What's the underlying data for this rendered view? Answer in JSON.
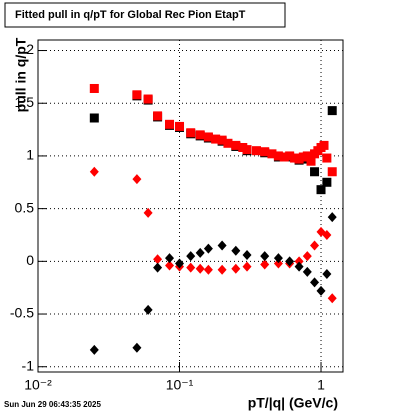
{
  "chart_data": {
    "type": "scatter",
    "title": "Fitted pull in q/pT for Global Rec Pion EtapT",
    "x_label": "pT/|q| (GeV/c)",
    "y_label": "pull in q/pT",
    "footer": "Sun Jun 29 06:43:35 2025",
    "log_x": true,
    "grid": true,
    "xlim": [
      0.01,
      1.43
    ],
    "xticks": [
      {
        "value": 0.01,
        "label": "10⁻²"
      },
      {
        "value": 0.1,
        "label": "10⁻¹"
      },
      1
    ],
    "ylim": [
      -1.05,
      2.1
    ],
    "yticks": [
      -1,
      -0.5,
      0,
      0.5,
      1,
      1.5,
      2
    ],
    "series": [
      {
        "color": "#000000",
        "marker": "square",
        "x": [
          0.025,
          0.05,
          0.06,
          0.07,
          0.085,
          0.1,
          0.12,
          0.14,
          0.16,
          0.2,
          0.25,
          0.3,
          0.4,
          0.5,
          0.6,
          0.7,
          0.8,
          0.9,
          1.0,
          1.1,
          1.2
        ],
        "values": [
          1.36,
          1.57,
          1.53,
          1.37,
          1.29,
          1.27,
          1.21,
          1.19,
          1.17,
          1.14,
          1.09,
          1.05,
          1.03,
          0.99,
          0.99,
          0.96,
          0.97,
          0.85,
          0.68,
          0.75,
          1.43
        ]
      },
      {
        "color": "#ff0000",
        "marker": "square",
        "x": [
          0.025,
          0.05,
          0.06,
          0.07,
          0.085,
          0.1,
          0.12,
          0.14,
          0.16,
          0.18,
          0.2,
          0.22,
          0.25,
          0.28,
          0.3,
          0.35,
          0.4,
          0.45,
          0.5,
          0.55,
          0.6,
          0.65,
          0.7,
          0.75,
          0.8,
          0.85,
          0.9,
          0.95,
          1.0,
          1.05,
          1.1,
          1.2
        ],
        "values": [
          1.64,
          1.58,
          1.54,
          1.38,
          1.3,
          1.28,
          1.22,
          1.2,
          1.18,
          1.16,
          1.15,
          1.12,
          1.1,
          1.08,
          1.06,
          1.05,
          1.04,
          1.02,
          1.0,
          0.99,
          1.0,
          0.98,
          0.97,
          0.99,
          1.0,
          0.95,
          1.02,
          1.05,
          1.08,
          1.1,
          0.98,
          0.85
        ]
      },
      {
        "color": "#ff0000",
        "marker": "diamond",
        "x": [
          0.025,
          0.05,
          0.06,
          0.07,
          0.085,
          0.1,
          0.12,
          0.14,
          0.16,
          0.2,
          0.25,
          0.3,
          0.4,
          0.5,
          0.6,
          0.7,
          0.8,
          0.9,
          1.0,
          1.1,
          1.2
        ],
        "values": [
          0.85,
          0.78,
          0.46,
          0.02,
          -0.04,
          -0.05,
          -0.06,
          -0.07,
          -0.08,
          -0.08,
          -0.07,
          -0.05,
          -0.03,
          -0.02,
          -0.02,
          0.0,
          0.05,
          0.15,
          0.28,
          0.25,
          -0.35
        ]
      },
      {
        "color": "#000000",
        "marker": "diamond",
        "x": [
          0.025,
          0.05,
          0.06,
          0.07,
          0.085,
          0.1,
          0.12,
          0.14,
          0.16,
          0.2,
          0.25,
          0.3,
          0.4,
          0.5,
          0.6,
          0.7,
          0.8,
          0.9,
          1.0,
          1.1,
          1.2
        ],
        "values": [
          -0.84,
          -0.82,
          -0.46,
          -0.06,
          0.03,
          -0.02,
          0.05,
          0.08,
          0.12,
          0.15,
          0.1,
          0.06,
          0.05,
          0.03,
          0.0,
          -0.05,
          -0.1,
          -0.2,
          -0.28,
          -0.12,
          0.42
        ]
      }
    ]
  }
}
